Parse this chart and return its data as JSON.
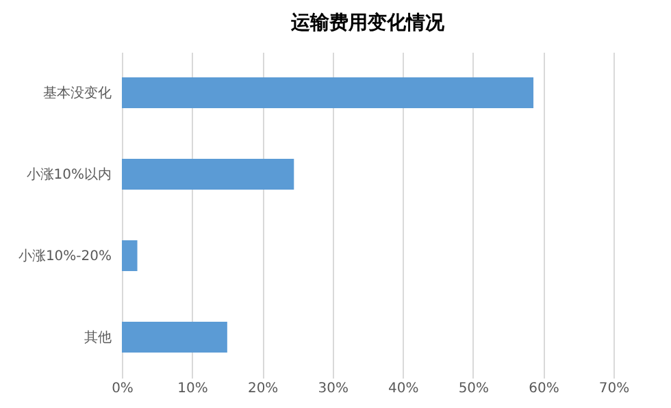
{
  "chart_data": {
    "type": "bar",
    "orientation": "horizontal",
    "title": "运输费用变化情况",
    "categories": [
      "基本没变化",
      "小涨10%以内",
      "小涨10%-20%",
      "其他"
    ],
    "values": [
      58.6,
      24.5,
      2.2,
      15.0
    ],
    "color": "#5b9bd5",
    "xlim": [
      0,
      70
    ],
    "xticks": [
      {
        "value": 0,
        "label": "0%"
      },
      {
        "value": 10,
        "label": "10%"
      },
      {
        "value": 20,
        "label": "20%"
      },
      {
        "value": 30,
        "label": "30%"
      },
      {
        "value": 40,
        "label": "40%"
      },
      {
        "value": 50,
        "label": "50%"
      },
      {
        "value": 60,
        "label": "60%"
      },
      {
        "value": 70,
        "label": "70%"
      }
    ],
    "grid": "x"
  }
}
